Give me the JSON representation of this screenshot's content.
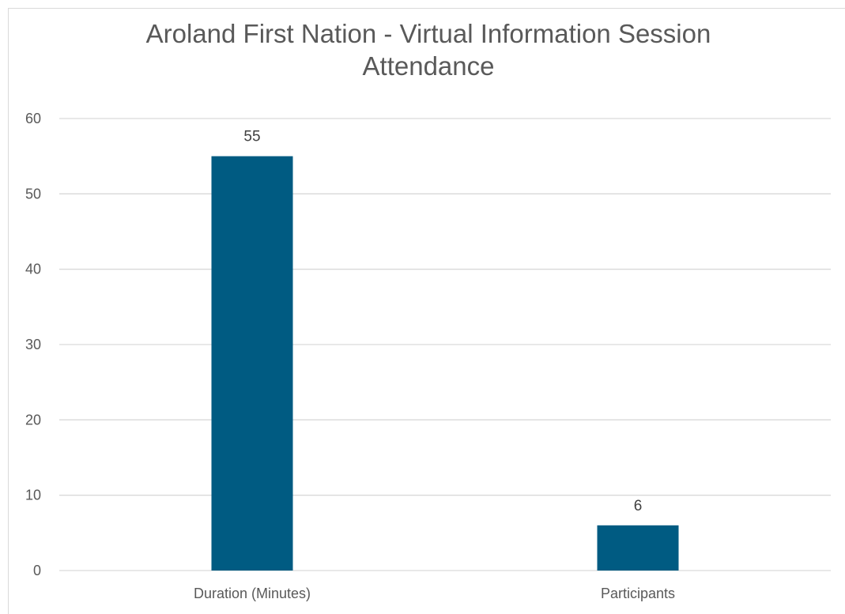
{
  "chart_data": {
    "type": "bar",
    "title": "Aroland First Nation - Virtual Information Session\nAttendance",
    "categories": [
      "Duration (Minutes)",
      "Participants"
    ],
    "values": [
      55,
      6
    ],
    "data_labels": [
      "55",
      "6"
    ],
    "ylim": [
      0,
      60
    ],
    "yticks": [
      0,
      10,
      20,
      30,
      40,
      50,
      60
    ],
    "xlabel": "",
    "ylabel": "",
    "grid": true,
    "legend": "none",
    "bar_color": "#005b82",
    "grid_color": "#d9d9d9"
  }
}
